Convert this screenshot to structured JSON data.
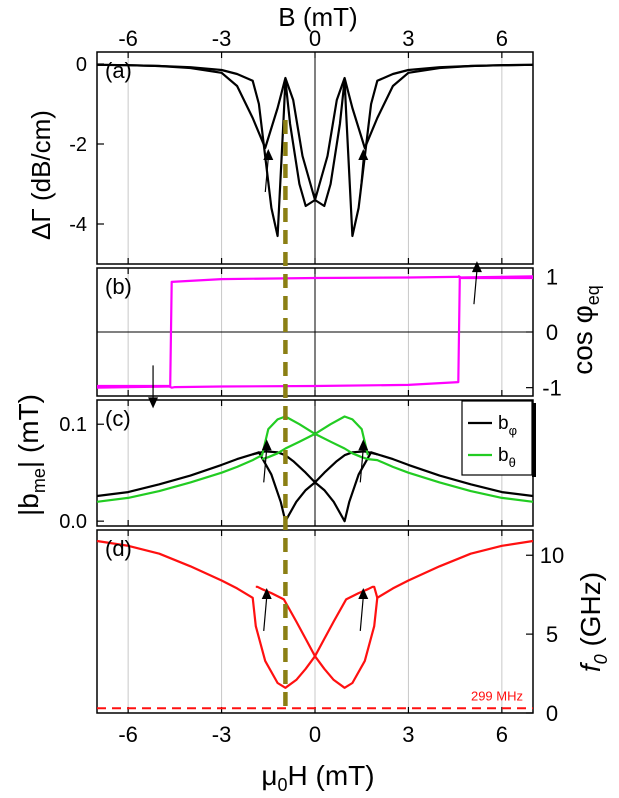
{
  "top_axis": {
    "label": "B (mT)",
    "ticks": [
      -6,
      -3,
      0,
      3,
      6
    ]
  },
  "bottom_axis": {
    "label_main": "μ",
    "label_sub": "0",
    "label_rest": "H (mT)",
    "ticks": [
      -6,
      -3,
      0,
      3,
      6
    ]
  },
  "xlim": [
    -7,
    7
  ],
  "colors": {
    "black": "#000000",
    "magenta": "#ff00ff",
    "green": "#22cc22",
    "red": "#ff1010",
    "olive": "#8b7f14",
    "grid": "#c8c8c8"
  },
  "chart_data": [
    {
      "type": "line",
      "panel": "(a)",
      "ylabel": "ΔΓ (dB/cm)",
      "ylim": [
        -5,
        0.3
      ],
      "yticks": [
        0,
        -2,
        -4
      ],
      "series": [
        {
          "color": "black",
          "x": [
            -7,
            -6,
            -5,
            -4,
            -3,
            -2.5,
            -2,
            -1.8,
            -1.4,
            -1.2,
            -1.0,
            -0.95,
            -0.8,
            -0.5,
            -0.3,
            0,
            0.4,
            0.7,
            0.95,
            1.2,
            1.6,
            2,
            2.5,
            3,
            4,
            5,
            6,
            7
          ],
          "y": [
            -0.02,
            -0.03,
            -0.05,
            -0.08,
            -0.15,
            -0.25,
            -0.42,
            -1.0,
            -3.6,
            -4.3,
            -1.2,
            -0.4,
            -1.5,
            -3.0,
            -3.55,
            -3.4,
            -2.3,
            -0.9,
            -0.35,
            -1.1,
            -2.1,
            -1.35,
            -0.55,
            -0.22,
            -0.1,
            -0.05,
            -0.03,
            -0.02
          ]
        },
        {
          "color": "black",
          "x": [
            -7,
            -6,
            -5,
            -4,
            -3,
            -2.5,
            -2,
            -1.6,
            -1.2,
            -0.95,
            -0.7,
            -0.4,
            0,
            0.3,
            0.5,
            0.8,
            0.95,
            1.0,
            1.2,
            1.4,
            1.8,
            2,
            2.5,
            3,
            4,
            5,
            6,
            7
          ],
          "y": [
            -0.02,
            -0.03,
            -0.05,
            -0.1,
            -0.22,
            -0.55,
            -1.35,
            -2.1,
            -1.1,
            -0.35,
            -0.9,
            -2.3,
            -3.4,
            -3.55,
            -3.0,
            -1.5,
            -0.4,
            -1.2,
            -4.3,
            -3.6,
            -1.0,
            -0.42,
            -0.25,
            -0.15,
            -0.08,
            -0.05,
            -0.03,
            -0.02
          ]
        }
      ],
      "arrows": [
        {
          "x": -1.5,
          "y": -3.2,
          "dir": "up"
        },
        {
          "x": 1.55,
          "y": -3.2,
          "dir": "up"
        }
      ]
    },
    {
      "type": "line",
      "panel": "(b)",
      "ylabel": "cos φ",
      "ylabel_sub": "eq",
      "ylim": [
        -1.15,
        1.15
      ],
      "yticks": [
        1,
        0,
        -1
      ],
      "series": [
        {
          "color": "magenta",
          "x": [
            -7,
            -4.65,
            -4.6,
            -3,
            0,
            3,
            4.5,
            4.6,
            4.62,
            4.7,
            5,
            7
          ],
          "y": [
            -1,
            -0.98,
            0.9,
            0.95,
            0.97,
            0.98,
            0.99,
            0.99,
            1.0,
            0.97,
            0.97,
            0.97
          ]
        },
        {
          "color": "magenta",
          "x": [
            -7,
            -5,
            -4.7,
            -4.6,
            -4.5,
            -3,
            0,
            3,
            4.6,
            4.65,
            7
          ],
          "y": [
            -0.97,
            -0.97,
            -0.97,
            -1.0,
            -0.99,
            -0.98,
            -0.97,
            -0.95,
            -0.9,
            0.98,
            1
          ]
        }
      ],
      "arrows": [
        {
          "x": -5.2,
          "y": -0.6,
          "dir": "down"
        },
        {
          "x": 5.2,
          "y": 0.5,
          "dir": "up"
        }
      ]
    },
    {
      "type": "line",
      "panel": "(c)",
      "ylabel": "|b",
      "ylabel_sub": "me",
      "ylabel_rest": "| (mT)",
      "ylim": [
        -0.005,
        0.125
      ],
      "yticks": [
        0.1,
        0.0
      ],
      "ytick_labels": [
        "0.1",
        "0.0"
      ],
      "legend": {
        "entries": [
          "b",
          "b"
        ],
        "subs": [
          "φ",
          "θ"
        ],
        "placement": "top-right"
      },
      "series": [
        {
          "name": "bφ",
          "color": "black",
          "x": [
            -7,
            -6,
            -5,
            -4,
            -3,
            -2.5,
            -2,
            -1.8,
            -1.4,
            -1.1,
            -0.95,
            -0.6,
            -0.3,
            0,
            0.3,
            0.6,
            0.95,
            1.1,
            1.4,
            1.8,
            2,
            2.5,
            3,
            4,
            5,
            6,
            7
          ],
          "y": [
            0.026,
            0.03,
            0.038,
            0.047,
            0.058,
            0.064,
            0.069,
            0.071,
            0.048,
            0.02,
            0.0,
            0.02,
            0.032,
            0.04,
            0.032,
            0.02,
            0.0,
            0.02,
            0.048,
            0.071,
            0.069,
            0.064,
            0.058,
            0.047,
            0.038,
            0.03,
            0.026
          ]
        },
        {
          "name": "bφ",
          "color": "black",
          "x": [
            -2.0,
            -1.6,
            -1.2,
            -0.95,
            -0.7,
            -0.3,
            0
          ],
          "y": [
            0.069,
            0.072,
            0.071,
            0.068,
            0.062,
            0.05,
            0.04
          ]
        },
        {
          "name": "bφ",
          "color": "black",
          "x": [
            0,
            0.3,
            0.7,
            0.95,
            1.2,
            1.6,
            2.0
          ],
          "y": [
            0.04,
            0.05,
            0.062,
            0.068,
            0.071,
            0.072,
            0.069
          ]
        },
        {
          "name": "bθ",
          "color": "green",
          "x": [
            -7,
            -6,
            -5,
            -4,
            -3,
            -2.5,
            -2,
            -1.7,
            -1.5,
            -1.2,
            -0.95,
            -0.5,
            0,
            0.5,
            0.95,
            1.2,
            1.5,
            1.7,
            2,
            2.5,
            3,
            4,
            5,
            6,
            7
          ],
          "y": [
            0.02,
            0.024,
            0.031,
            0.04,
            0.05,
            0.056,
            0.063,
            0.068,
            0.095,
            0.105,
            0.108,
            0.1,
            0.09,
            0.082,
            0.075,
            0.07,
            0.066,
            0.064,
            0.063,
            0.056,
            0.05,
            0.04,
            0.031,
            0.024,
            0.02
          ]
        },
        {
          "name": "bθ",
          "color": "green",
          "x": [
            -1.7,
            -1.5,
            -1.2,
            -0.95,
            -0.5,
            0,
            0.5,
            0.95,
            1.2,
            1.5,
            1.7
          ],
          "y": [
            0.064,
            0.066,
            0.07,
            0.075,
            0.082,
            0.09,
            0.1,
            0.108,
            0.105,
            0.095,
            0.068
          ]
        }
      ],
      "arrows": [
        {
          "x": -1.55,
          "y": 0.04,
          "dir": "up"
        },
        {
          "x": 1.55,
          "y": 0.04,
          "dir": "up"
        }
      ]
    },
    {
      "type": "line",
      "panel": "(d)",
      "ylabel": "f",
      "ylabel_sub": "0",
      "ylabel_rest": " (GHz)",
      "ylim": [
        0,
        11.6
      ],
      "yticks": [
        10,
        5,
        0
      ],
      "hline": {
        "y": 0.3,
        "label": "299 MHz",
        "color": "red"
      },
      "series": [
        {
          "color": "red",
          "x": [
            -7,
            -6,
            -5,
            -4,
            -3,
            -2.5,
            -2,
            -1.9,
            -1.6,
            -1.2,
            -0.95,
            -0.6,
            -0.3,
            0,
            0.3,
            0.6,
            1.0,
            1.4,
            1.7,
            1.85,
            1.9,
            2,
            2.5,
            3,
            4,
            5,
            6,
            7
          ],
          "y": [
            10.9,
            10.6,
            10.1,
            9.3,
            8.4,
            7.9,
            7.3,
            5.5,
            3.3,
            1.9,
            1.6,
            2.1,
            2.8,
            3.6,
            4.7,
            5.8,
            7.2,
            7.6,
            7.85,
            8.0,
            8.0,
            7.3,
            7.9,
            8.4,
            9.3,
            10.1,
            10.6,
            10.9
          ]
        },
        {
          "color": "red",
          "x": [
            -1.9,
            -1.85,
            -1.7,
            -1.4,
            -1.0,
            -0.6,
            -0.3,
            0,
            0.3,
            0.6,
            0.95,
            1.2,
            1.6,
            1.9,
            2.0
          ],
          "y": [
            8.0,
            8.0,
            7.85,
            7.6,
            7.2,
            5.8,
            4.7,
            3.6,
            2.8,
            2.1,
            1.6,
            1.9,
            3.3,
            5.5,
            7.3
          ]
        }
      ],
      "arrows": [
        {
          "x": -1.55,
          "y": 5.2,
          "dir": "up"
        },
        {
          "x": 1.55,
          "y": 5.2,
          "dir": "up"
        }
      ]
    }
  ],
  "marker_line": {
    "x": -0.95,
    "color": "olive"
  }
}
